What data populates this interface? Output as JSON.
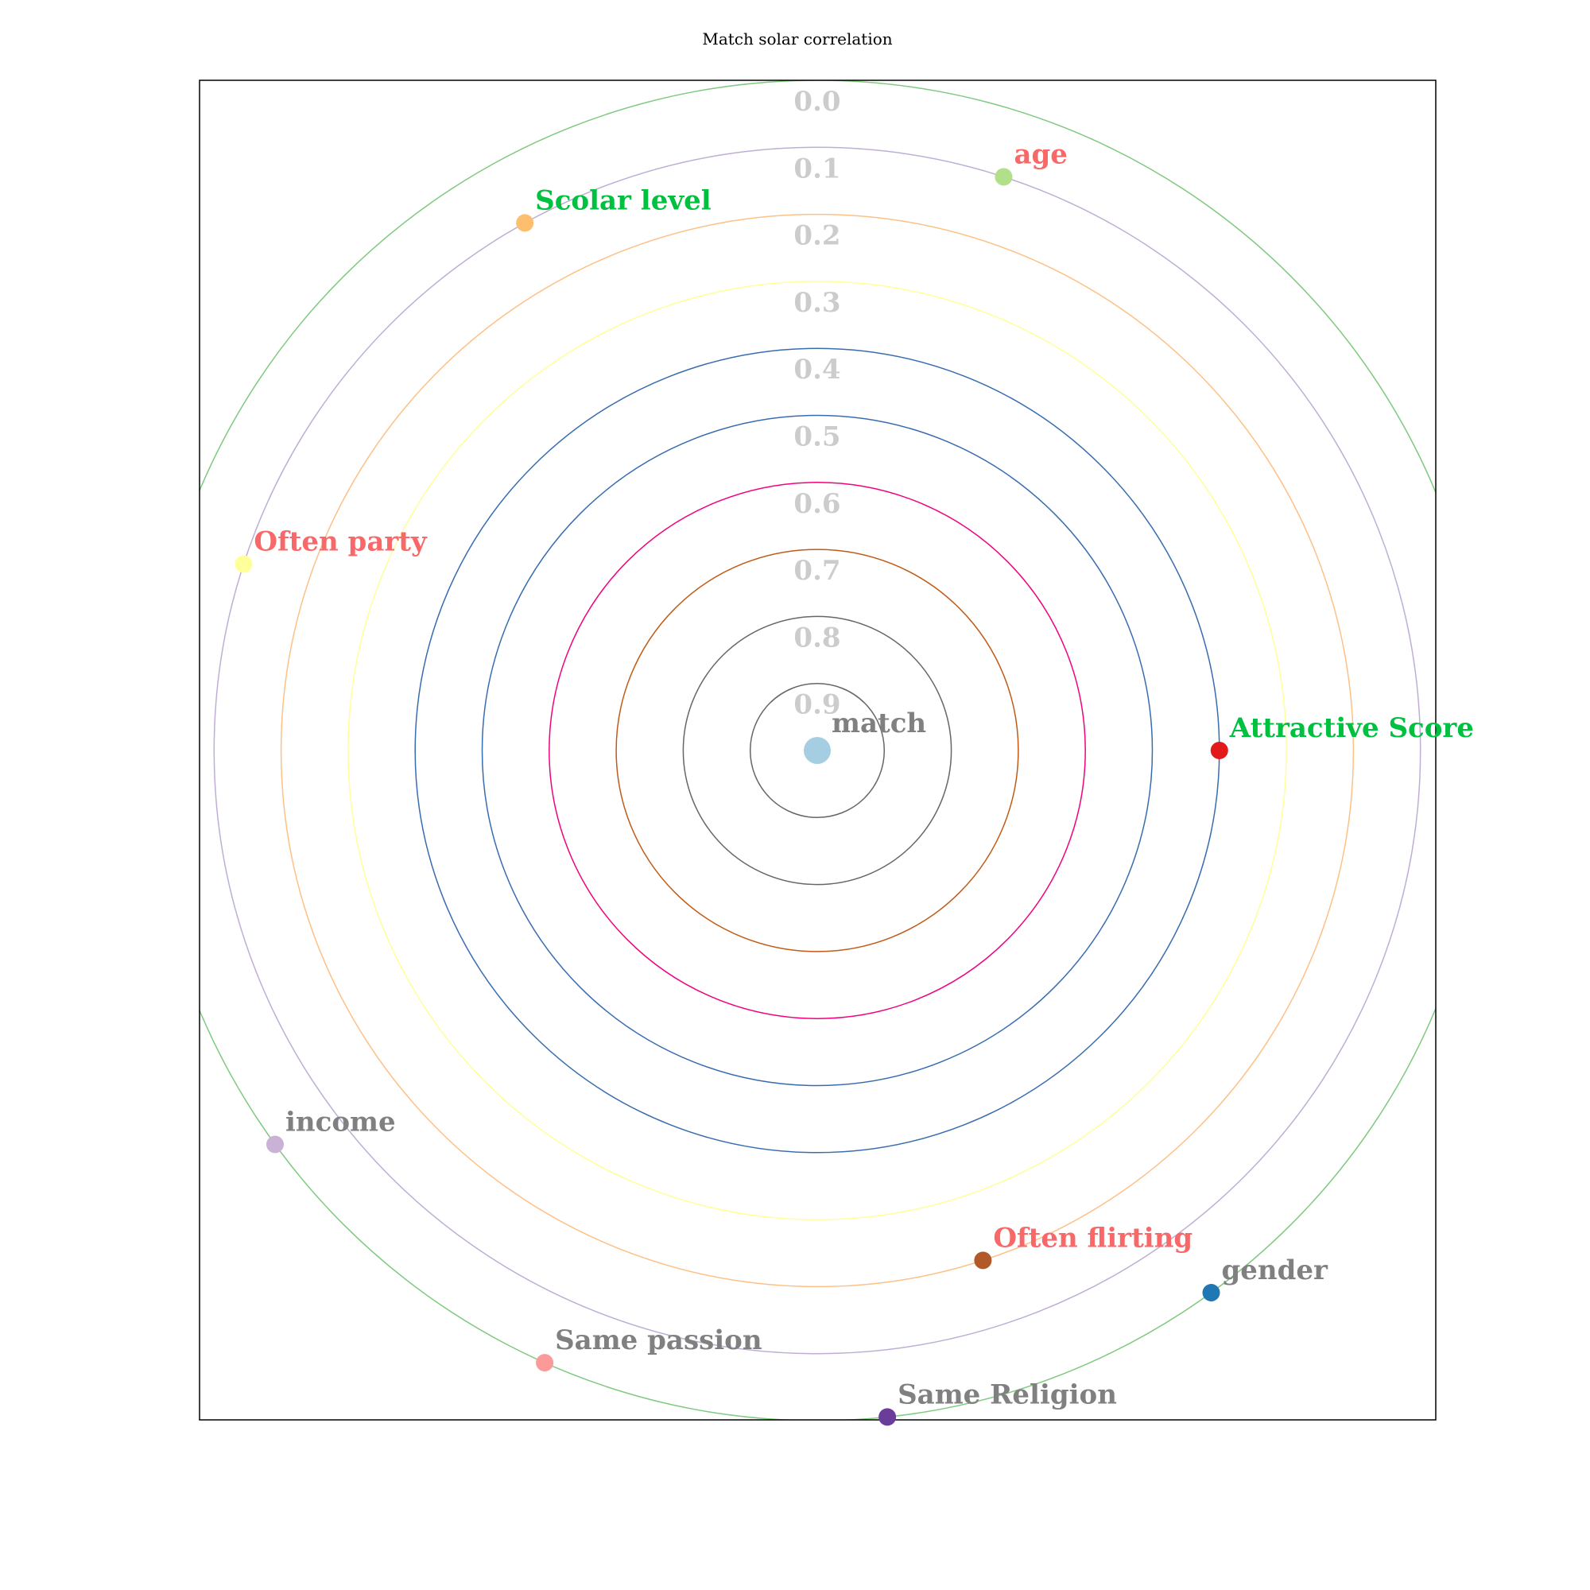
{
  "chart_data": {
    "type": "scatter",
    "title": "Match solar correlation",
    "center": {
      "label": "match",
      "color": "#a6cee3",
      "label_color": "#808080"
    },
    "rings": [
      {
        "label": "0.0",
        "distance": 1.0,
        "color": "#7fc97f"
      },
      {
        "label": "0.1",
        "distance": 0.9,
        "color": "#beaed4"
      },
      {
        "label": "0.2",
        "distance": 0.8,
        "color": "#fdc086"
      },
      {
        "label": "0.3",
        "distance": 0.7,
        "color": "#ffff99"
      },
      {
        "label": "0.4",
        "distance": 0.6,
        "color": "#386cb0"
      },
      {
        "label": "0.5",
        "distance": 0.5,
        "color": "#386cb0"
      },
      {
        "label": "0.6",
        "distance": 0.4,
        "color": "#f0027f"
      },
      {
        "label": "0.7",
        "distance": 0.3,
        "color": "#bf5b17"
      },
      {
        "label": "0.8",
        "distance": 0.2,
        "color": "#666666"
      },
      {
        "label": "0.9",
        "distance": 0.1,
        "color": "#666666"
      }
    ],
    "planets": [
      {
        "name": "Attractive Score",
        "distance": 0.6,
        "angle_deg": 0,
        "color": "#e31a1c",
        "label_color": "#00c040"
      },
      {
        "name": "age",
        "distance": 0.9,
        "angle_deg": 72,
        "color": "#b2df8a",
        "label_color": "#f86868"
      },
      {
        "name": "Scolar level",
        "distance": 0.9,
        "angle_deg": 119,
        "color": "#fdbf6f",
        "label_color": "#00c040"
      },
      {
        "name": "Often party",
        "distance": 0.9,
        "angle_deg": 162,
        "color": "#ffff99",
        "label_color": "#f86868"
      },
      {
        "name": "income",
        "distance": 1.0,
        "angle_deg": 216,
        "color": "#cab2d6",
        "label_color": "#808080"
      },
      {
        "name": "Same passion",
        "distance": 1.0,
        "angle_deg": 246,
        "color": "#fb9a99",
        "label_color": "#808080"
      },
      {
        "name": "Same Religion",
        "distance": 1.0,
        "angle_deg": 276,
        "color": "#6a3d9a",
        "label_color": "#808080"
      },
      {
        "name": "Often flirting",
        "distance": 0.8,
        "angle_deg": 288,
        "color": "#b15928",
        "label_color": "#f86868"
      },
      {
        "name": "gender",
        "distance": 1.0,
        "angle_deg": 306,
        "color": "#1f78b4",
        "label_color": "#808080"
      }
    ],
    "grid": false,
    "legend": "none"
  }
}
